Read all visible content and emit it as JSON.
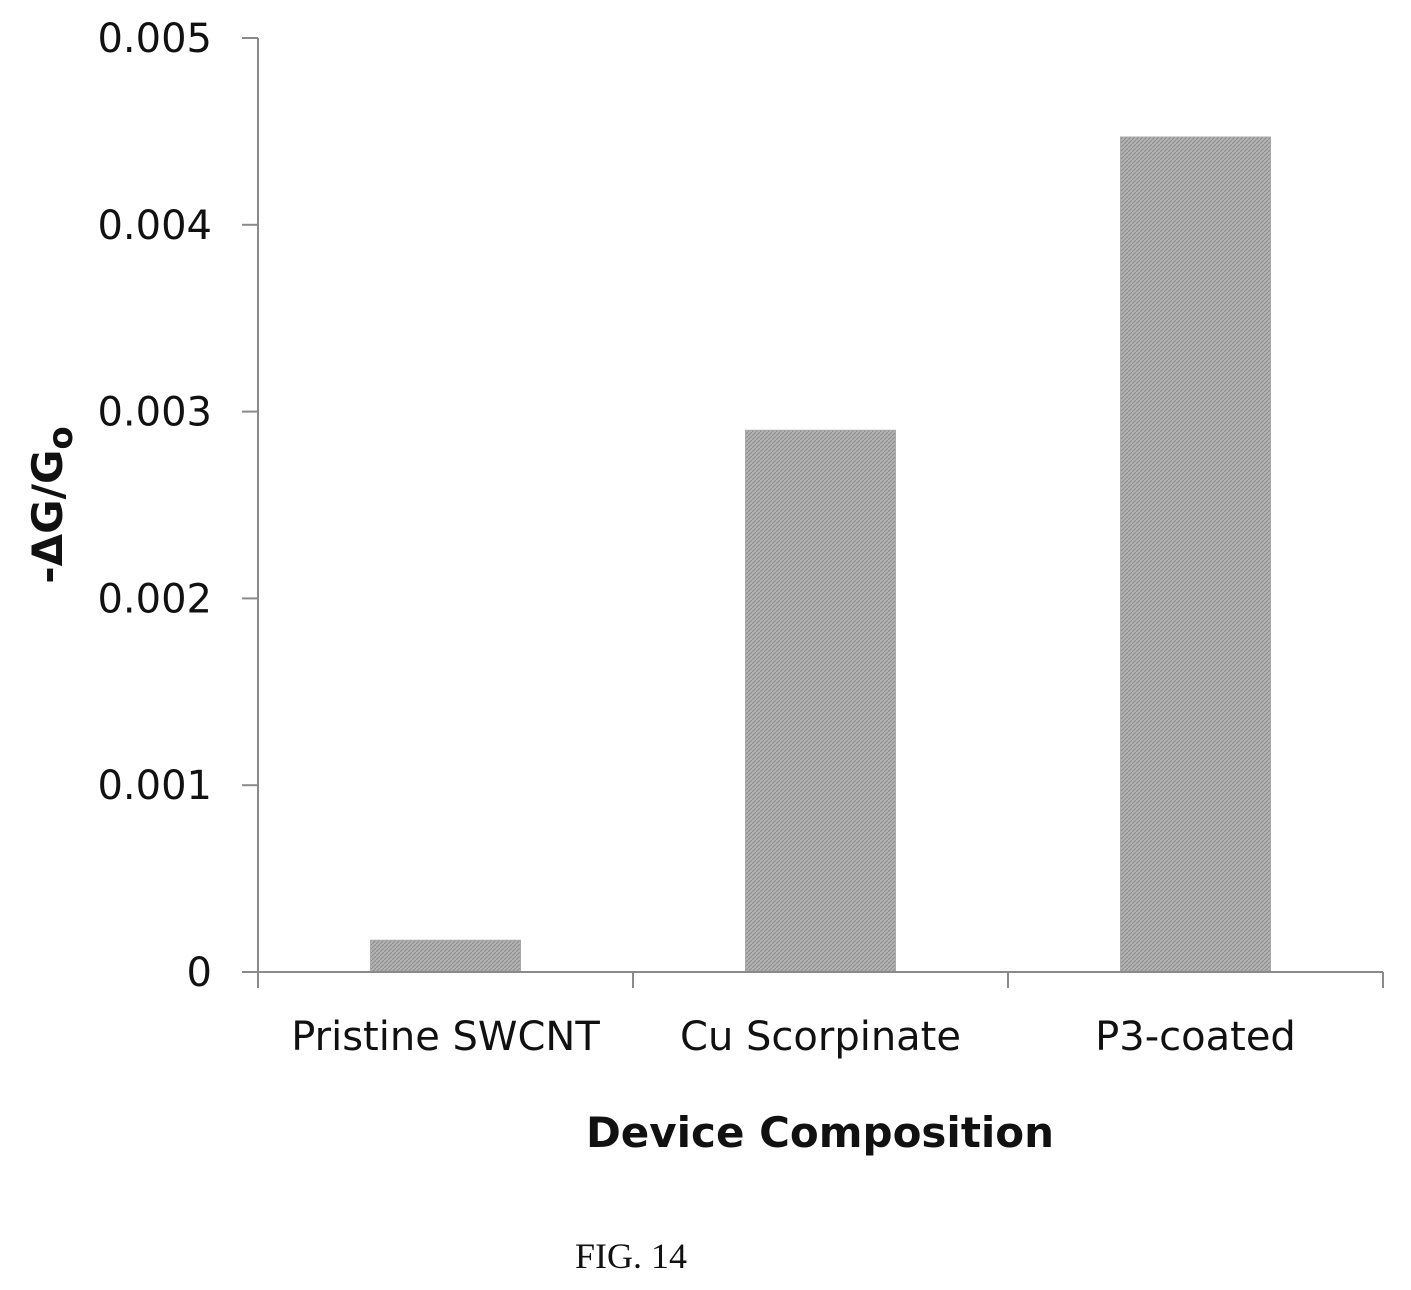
{
  "chart_data": {
    "type": "bar",
    "categories": [
      "Pristine SWCNT",
      "Cu Scorpinate",
      "P3-coated"
    ],
    "values": [
      0.00017,
      0.0029,
      0.00447
    ],
    "xlabel": "Device Composition",
    "ylabel": {
      "prefix": "-ΔG/G",
      "subscript": "o"
    },
    "ylim": [
      0,
      0.005
    ],
    "yticks": [
      "0",
      "0.001",
      "0.002",
      "0.003",
      "0.004",
      "0.005"
    ],
    "grid": false,
    "legend": "none",
    "bar_color": "#a9a9a9"
  },
  "caption": "FIG. 14"
}
